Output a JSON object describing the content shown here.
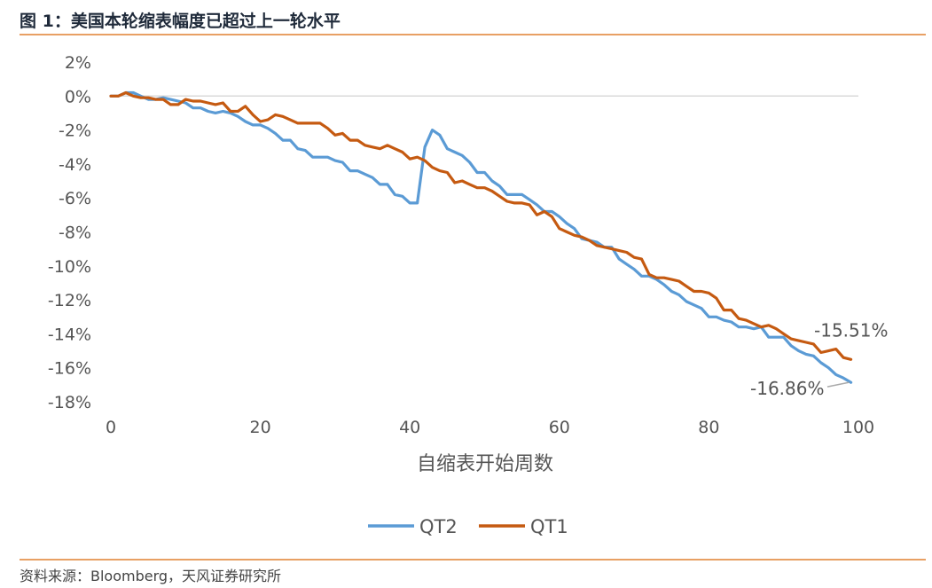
{
  "header": {
    "title": "图 1：美国本轮缩表幅度已超过上一轮水平"
  },
  "footer": {
    "source": "资料来源：Bloomberg，天风证券研究所"
  },
  "colors": {
    "QT2": "#5b9bd5",
    "QT1": "#c55a11",
    "zero_line": "#d9d9d9",
    "rule": "#e8a064"
  },
  "chart_data": {
    "type": "line",
    "title": "",
    "xlabel": "自缩表开始周数",
    "ylabel": "",
    "xlim": [
      0,
      100
    ],
    "ylim": [
      -18,
      2
    ],
    "x_ticks": [
      0,
      20,
      40,
      60,
      80,
      100
    ],
    "y_ticks": [
      2,
      0,
      -2,
      -4,
      -6,
      -8,
      -10,
      -12,
      -14,
      -16,
      -18
    ],
    "x_tick_labels": [
      "0",
      "20",
      "40",
      "60",
      "80",
      "100"
    ],
    "y_tick_labels": [
      "2%",
      "0%",
      "-2%",
      "-4%",
      "-6%",
      "-8%",
      "-10%",
      "-12%",
      "-14%",
      "-16%",
      "-18%"
    ],
    "grid": false,
    "legend": {
      "position": "bottom-center",
      "entries": [
        "QT2",
        "QT1"
      ]
    },
    "annotations": [
      {
        "series": "QT1",
        "text": "-15.51%",
        "x": 99,
        "y": -15.51
      },
      {
        "series": "QT2",
        "text": "-16.86%",
        "x": 99,
        "y": -16.86
      }
    ],
    "series": [
      {
        "name": "QT2",
        "x": [
          0,
          1,
          2,
          3,
          4,
          5,
          6,
          7,
          8,
          9,
          10,
          11,
          12,
          13,
          14,
          15,
          16,
          17,
          18,
          19,
          20,
          21,
          22,
          23,
          24,
          25,
          26,
          27,
          28,
          29,
          30,
          31,
          32,
          33,
          34,
          35,
          36,
          37,
          38,
          39,
          40,
          41,
          42,
          43,
          44,
          45,
          46,
          47,
          48,
          49,
          50,
          51,
          52,
          53,
          54,
          55,
          56,
          57,
          58,
          59,
          60,
          61,
          62,
          63,
          64,
          65,
          66,
          67,
          68,
          69,
          70,
          71,
          72,
          73,
          74,
          75,
          76,
          77,
          78,
          79,
          80,
          81,
          82,
          83,
          84,
          85,
          86,
          87,
          88,
          89,
          90,
          91,
          92,
          93,
          94,
          95,
          96,
          97,
          98,
          99
        ],
        "values": [
          0,
          0,
          0.2,
          0.2,
          0,
          -0.2,
          -0.2,
          -0.1,
          -0.2,
          -0.3,
          -0.4,
          -0.7,
          -0.7,
          -0.9,
          -1.0,
          -0.9,
          -1.0,
          -1.2,
          -1.5,
          -1.7,
          -1.7,
          -1.9,
          -2.2,
          -2.6,
          -2.6,
          -3.1,
          -3.2,
          -3.6,
          -3.6,
          -3.6,
          -3.8,
          -3.9,
          -4.4,
          -4.4,
          -4.6,
          -4.8,
          -5.2,
          -5.2,
          -5.8,
          -5.9,
          -6.3,
          -6.3,
          -3.0,
          -2.0,
          -2.3,
          -3.1,
          -3.3,
          -3.5,
          -3.9,
          -4.5,
          -4.5,
          -5.0,
          -5.3,
          -5.8,
          -5.8,
          -5.8,
          -6.1,
          -6.4,
          -6.8,
          -6.8,
          -7.1,
          -7.5,
          -7.8,
          -8.4,
          -8.5,
          -8.6,
          -8.9,
          -8.9,
          -9.6,
          -9.9,
          -10.2,
          -10.6,
          -10.6,
          -10.8,
          -11.1,
          -11.5,
          -11.7,
          -12.1,
          -12.3,
          -12.5,
          -13.0,
          -13.0,
          -13.2,
          -13.3,
          -13.6,
          -13.6,
          -13.7,
          -13.6,
          -14.2,
          -14.2,
          -14.2,
          -14.7,
          -15.0,
          -15.2,
          -15.3,
          -15.7,
          -16.0,
          -16.4,
          -16.6,
          -16.86
        ]
      },
      {
        "name": "QT1",
        "x": [
          0,
          1,
          2,
          3,
          4,
          5,
          6,
          7,
          8,
          9,
          10,
          11,
          12,
          13,
          14,
          15,
          16,
          17,
          18,
          19,
          20,
          21,
          22,
          23,
          24,
          25,
          26,
          27,
          28,
          29,
          30,
          31,
          32,
          33,
          34,
          35,
          36,
          37,
          38,
          39,
          40,
          41,
          42,
          43,
          44,
          45,
          46,
          47,
          48,
          49,
          50,
          51,
          52,
          53,
          54,
          55,
          56,
          57,
          58,
          59,
          60,
          61,
          62,
          63,
          64,
          65,
          66,
          67,
          68,
          69,
          70,
          71,
          72,
          73,
          74,
          75,
          76,
          77,
          78,
          79,
          80,
          81,
          82,
          83,
          84,
          85,
          86,
          87,
          88,
          89,
          90,
          91,
          92,
          93,
          94,
          95,
          96,
          97,
          98,
          99
        ],
        "values": [
          0,
          0,
          0.2,
          0,
          -0.1,
          -0.1,
          -0.2,
          -0.2,
          -0.5,
          -0.5,
          -0.2,
          -0.3,
          -0.3,
          -0.4,
          -0.5,
          -0.4,
          -0.9,
          -0.9,
          -0.6,
          -1.1,
          -1.5,
          -1.4,
          -1.1,
          -1.2,
          -1.4,
          -1.6,
          -1.6,
          -1.6,
          -1.6,
          -1.9,
          -2.3,
          -2.2,
          -2.6,
          -2.6,
          -2.9,
          -3.0,
          -3.1,
          -2.9,
          -3.1,
          -3.3,
          -3.7,
          -3.6,
          -3.8,
          -4.2,
          -4.4,
          -4.5,
          -5.1,
          -5.0,
          -5.2,
          -5.4,
          -5.4,
          -5.6,
          -5.9,
          -6.2,
          -6.3,
          -6.3,
          -6.4,
          -7.0,
          -6.8,
          -7.1,
          -7.8,
          -8.0,
          -8.2,
          -8.3,
          -8.5,
          -8.8,
          -8.9,
          -9.0,
          -9.1,
          -9.2,
          -9.5,
          -9.6,
          -10.5,
          -10.7,
          -10.7,
          -10.8,
          -10.9,
          -11.2,
          -11.5,
          -11.5,
          -11.6,
          -11.9,
          -12.6,
          -12.6,
          -13.1,
          -13.2,
          -13.4,
          -13.6,
          -13.5,
          -13.7,
          -14.0,
          -14.3,
          -14.4,
          -14.5,
          -14.6,
          -15.1,
          -15.0,
          -14.9,
          -15.4,
          -15.51
        ]
      }
    ]
  }
}
